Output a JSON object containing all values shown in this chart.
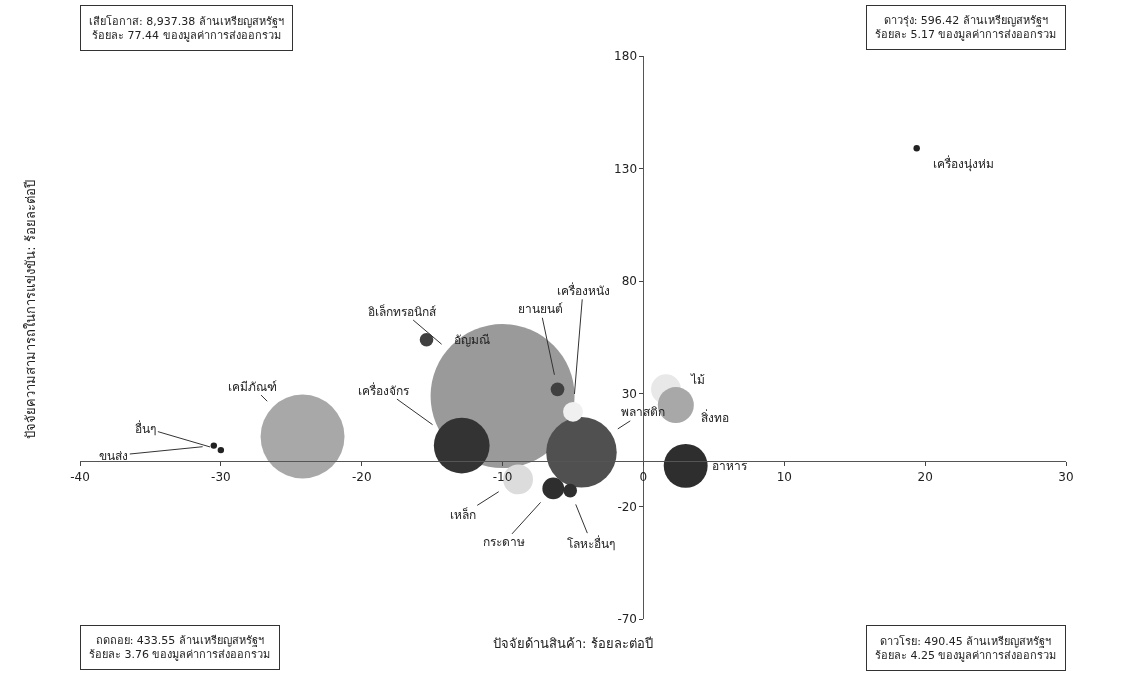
{
  "chart_data": {
    "type": "bubble",
    "xlabel": "ปัจจัยด้านสินค้า: ร้อยละต่อปี",
    "ylabel": "ปัจจัยความสามารถในการแข่งขัน: ร้อยละต่อปี",
    "x": [
      -10.0,
      -24.2,
      -4.4,
      -12.9,
      3.0,
      1.6,
      2.3,
      -8.9,
      -6.4,
      -5.0,
      -15.4,
      -6.1,
      -5.2,
      19.4,
      -30.5,
      -30.0
    ],
    "values": [
      29,
      11,
      4,
      7,
      -2,
      32,
      25,
      -8,
      -12,
      22,
      54,
      32,
      -13,
      139,
      7,
      5
    ],
    "sizes": [
      1,
      0.34,
      0.24,
      0.15,
      0.093,
      0.043,
      0.0625,
      0.043,
      0.023,
      0.019,
      0.009,
      0.009,
      0.009,
      0.002,
      0.002,
      0.002
    ],
    "colors": [
      "#9a9a9a",
      "#a8a8a8",
      "#505050",
      "#333333",
      "#2e2e2e",
      "#e8e8e8",
      "#a8a8a8",
      "#dcdcdc",
      "#2e2e2e",
      "#f0f0f0",
      "#404040",
      "#404040",
      "#2e2e2e",
      "#222222",
      "#222222",
      "#222222"
    ],
    "xlim": [
      -40,
      30
    ],
    "ylim": [
      -70,
      180
    ],
    "xticks": [
      -40,
      -30,
      -20,
      -10,
      0,
      10,
      20,
      30
    ],
    "yticks": [
      -70,
      -20,
      30,
      80,
      130,
      180
    ],
    "annotations": [
      {
        "text": "อิเล็กทรอนิกส์",
        "x": -10.0,
        "y": 29
      },
      {
        "text": "อัญมณี",
        "x": -15.4,
        "y": 54
      },
      {
        "text": "เครื่องจักร",
        "x": -12.9,
        "y": 7
      },
      {
        "text": "เคมีภัณฑ์",
        "x": -24.2,
        "y": 11
      },
      {
        "text": "ยานยนต์",
        "x": -6.1,
        "y": 32
      },
      {
        "text": "เครื่องหนัง",
        "x": -5.0,
        "y": 22
      },
      {
        "text": "พลาสติก",
        "x": -4.4,
        "y": 4
      },
      {
        "text": "เหล็ก",
        "x": -8.9,
        "y": -8
      },
      {
        "text": "กระดาษ",
        "x": -6.4,
        "y": -12
      },
      {
        "text": "โลหะอื่นๆ",
        "x": -5.2,
        "y": -13
      },
      {
        "text": "ไม้",
        "x": 1.6,
        "y": 32
      },
      {
        "text": "สิ่งทอ",
        "x": 2.3,
        "y": 25
      },
      {
        "text": "อาหาร",
        "x": 3.0,
        "y": -2
      },
      {
        "text": "เครื่องนุ่งห่ม",
        "x": 19.4,
        "y": 139
      },
      {
        "text": "ขนส่ง",
        "x": -30.5,
        "y": 7
      },
      {
        "text": "อื่นๆ",
        "x": -30.0,
        "y": 5
      },
      "เสียโอกาส: 8,937.38 ล้านเหรียญสหรัฐฯ\nร้อยละ 77.44 ของมูลค่าการส่งออกรวม",
      "ดาวรุ่ง: 596.42 ล้านเหรียญสหรัฐฯ\nร้อยละ 5.17 ของมูลค่าการส่งออกรวม",
      "ถดถอย: 433.55 ล้านเหรียญสหรัฐฯ\nร้อยละ 3.76 ของมูลค่าการส่งออกรวม",
      "ดาวโรย: 490.45 ล้านเหรียญสหรัฐฯ\nร้อยละ 4.25 ของมูลค่าการส่งออกรวม"
    ]
  }
}
